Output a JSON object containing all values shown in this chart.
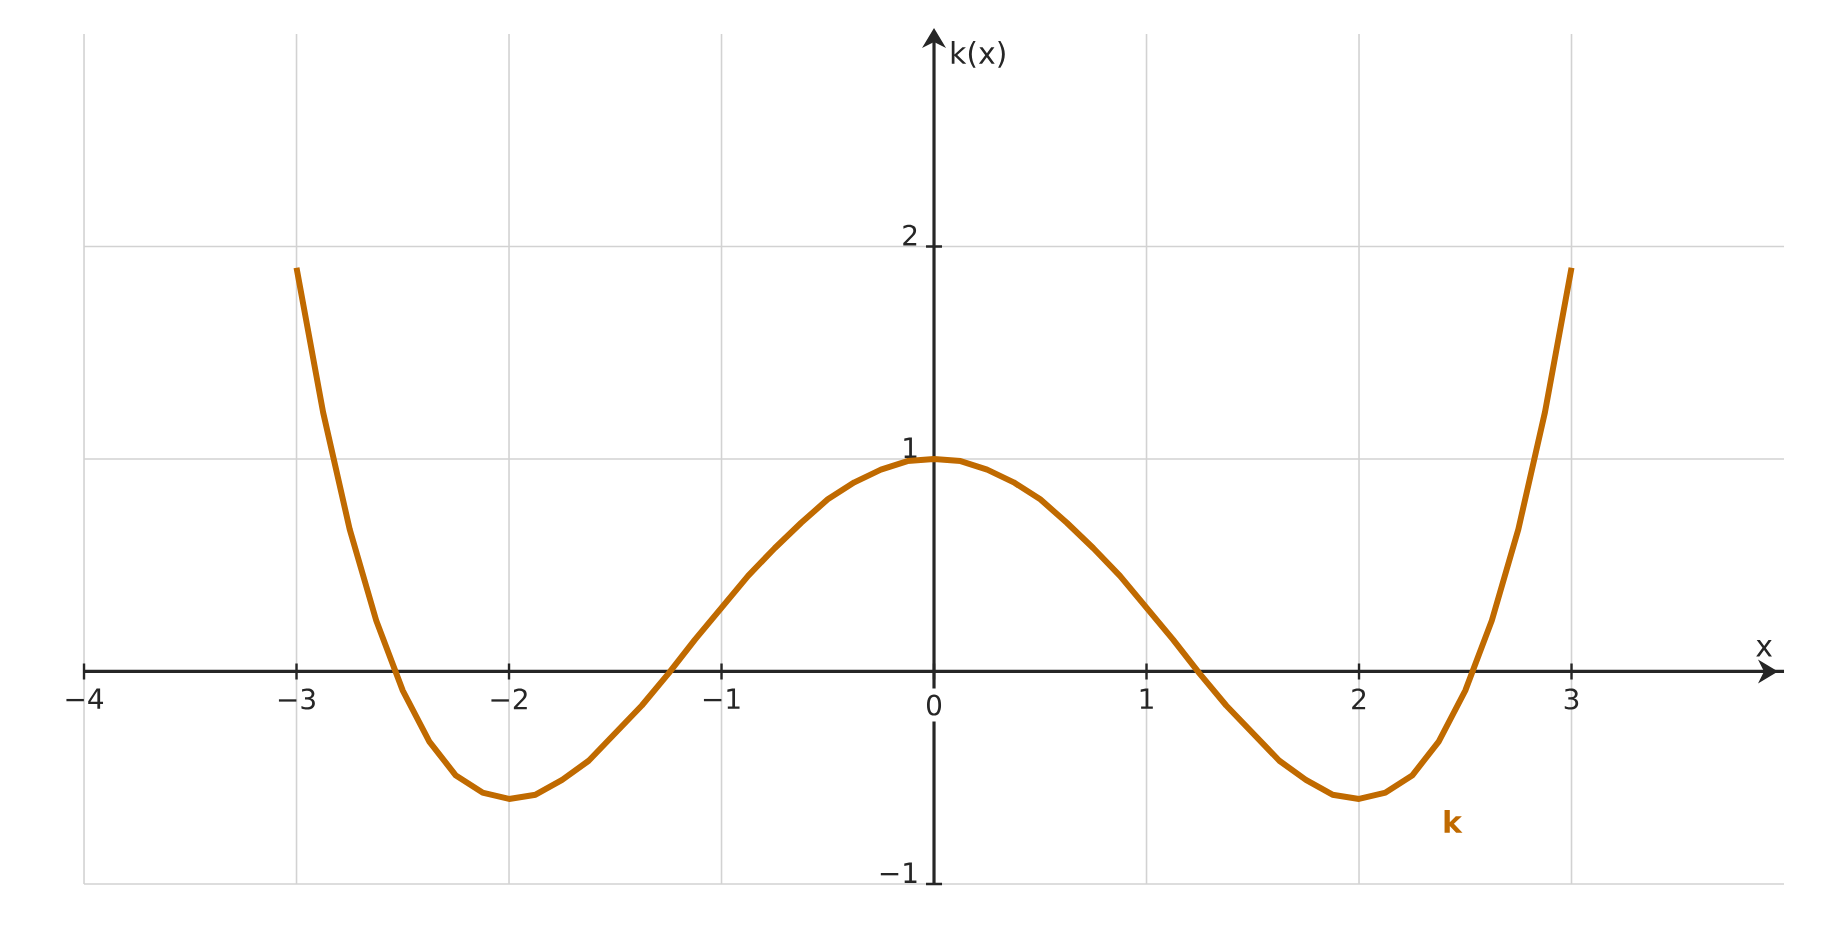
{
  "chart_data": {
    "type": "line",
    "xlabel": "x",
    "ylabel": "k(x)",
    "x": [
      -3,
      -2.875,
      -2.75,
      -2.625,
      -2.5,
      -2.375,
      -2.25,
      -2.125,
      -2,
      -1.875,
      -1.75,
      -1.625,
      -1.5,
      -1.375,
      -1.25,
      -1.125,
      -1,
      -0.875,
      -0.75,
      -0.625,
      -0.5,
      -0.375,
      -0.25,
      -0.125,
      0,
      0.125,
      0.25,
      0.375,
      0.5,
      0.625,
      0.75,
      0.875,
      1,
      1.125,
      1.25,
      1.375,
      1.5,
      1.625,
      1.75,
      1.875,
      2,
      2.125,
      2.25,
      2.375,
      2.5,
      2.625,
      2.75,
      2.875,
      3
    ],
    "series": [
      {
        "name": "k",
        "color": "#c06a00",
        "values": [
          1.9,
          1.22,
          0.67,
          0.24,
          -0.09,
          -0.33,
          -0.49,
          -0.57,
          -0.6,
          -0.58,
          -0.51,
          -0.42,
          -0.29,
          -0.16,
          -0.01,
          0.15,
          0.3,
          0.45,
          0.58,
          0.7,
          0.81,
          0.89,
          0.95,
          0.99,
          1,
          0.99,
          0.95,
          0.89,
          0.81,
          0.7,
          0.58,
          0.45,
          0.3,
          0.15,
          -0.01,
          -0.16,
          -0.29,
          -0.42,
          -0.51,
          -0.58,
          -0.6,
          -0.57,
          -0.49,
          -0.33,
          -0.09,
          0.24,
          0.67,
          1.22,
          1.9
        ]
      }
    ],
    "xlim": [
      -4,
      4
    ],
    "ylim": [
      -1,
      3
    ],
    "xticks": [
      {
        "value": -4,
        "label": "−4"
      },
      {
        "value": -3,
        "label": "−3"
      },
      {
        "value": -2,
        "label": "−2"
      },
      {
        "value": -1,
        "label": "−1"
      },
      0,
      1,
      2,
      3
    ],
    "yticks": [
      {
        "value": -1,
        "label": "−1"
      },
      1,
      2
    ],
    "grid": true,
    "marker": "none",
    "line_style": "solid"
  }
}
